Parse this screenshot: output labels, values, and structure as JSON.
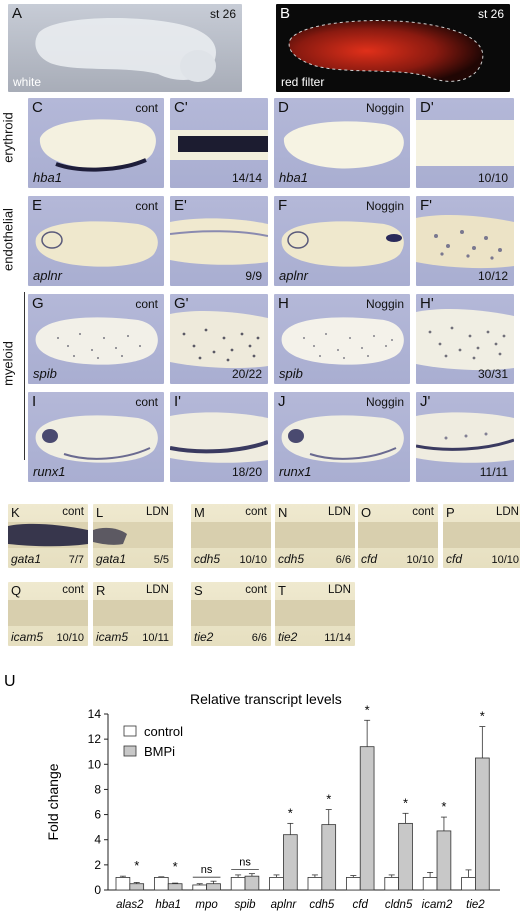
{
  "rows": {
    "erythroid": "erythroid",
    "endothelial": "endothelial",
    "myeloid": "myeloid"
  },
  "panels": {
    "A": {
      "label": "A",
      "tag": "st 26",
      "note": "white"
    },
    "B": {
      "label": "B",
      "tag": "st 26",
      "note": "red filter"
    },
    "C": {
      "label": "C",
      "tag": "cont",
      "gene": "hba1"
    },
    "Cp": {
      "label": "C'",
      "ratio": "14/14"
    },
    "D": {
      "label": "D",
      "tag": "Noggin",
      "gene": "hba1"
    },
    "Dp": {
      "label": "D'",
      "ratio": "10/10"
    },
    "E": {
      "label": "E",
      "tag": "cont",
      "gene": "aplnr"
    },
    "Ep": {
      "label": "E'",
      "ratio": "9/9"
    },
    "F": {
      "label": "F",
      "tag": "Noggin",
      "gene": "aplnr"
    },
    "Fp": {
      "label": "F'",
      "ratio": "10/12"
    },
    "G": {
      "label": "G",
      "tag": "cont",
      "gene": "spib"
    },
    "Gp": {
      "label": "G'",
      "ratio": "20/22"
    },
    "H": {
      "label": "H",
      "tag": "Noggin",
      "gene": "spib"
    },
    "Hp": {
      "label": "H'",
      "ratio": "30/31"
    },
    "I": {
      "label": "I",
      "tag": "cont",
      "gene": "runx1"
    },
    "Ip": {
      "label": "I'",
      "ratio": "18/20"
    },
    "J": {
      "label": "J",
      "tag": "Noggin",
      "gene": "runx1"
    },
    "Jp": {
      "label": "J'",
      "ratio": "11/11"
    }
  },
  "small_panels": [
    {
      "label": "K",
      "tag": "cont",
      "gene": "gata1",
      "ratio": "7/7"
    },
    {
      "label": "L",
      "tag": "LDN",
      "gene": "gata1",
      "ratio": "5/5"
    },
    {
      "label": "M",
      "tag": "cont",
      "gene": "cdh5",
      "ratio": "10/10"
    },
    {
      "label": "N",
      "tag": "LDN",
      "gene": "cdh5",
      "ratio": "6/6"
    },
    {
      "label": "O",
      "tag": "cont",
      "gene": "cfd",
      "ratio": "10/10"
    },
    {
      "label": "P",
      "tag": "LDN",
      "gene": "cfd",
      "ratio": "10/10"
    },
    {
      "label": "Q",
      "tag": "cont",
      "gene": "icam5",
      "ratio": "10/10"
    },
    {
      "label": "R",
      "tag": "LDN",
      "gene": "icam5",
      "ratio": "10/11"
    },
    {
      "label": "S",
      "tag": "cont",
      "gene": "tie2",
      "ratio": "6/6"
    },
    {
      "label": "T",
      "tag": "LDN",
      "gene": "tie2",
      "ratio": "11/14"
    }
  ],
  "chart_data": {
    "panel_label": "U",
    "type": "bar",
    "title": "Relative transcript levels",
    "ylabel": "Fold change",
    "xlabel": "",
    "ylim": [
      0,
      14
    ],
    "yticks": [
      0,
      2,
      4,
      6,
      8,
      10,
      12,
      14
    ],
    "categories": [
      "alas2",
      "hba1",
      "mpo",
      "spib",
      "aplnr",
      "cdh5",
      "cfd",
      "cldn5",
      "icam2",
      "tie2"
    ],
    "series": [
      {
        "name": "control",
        "values": [
          1.0,
          1.0,
          0.4,
          1.0,
          1.0,
          1.0,
          1.0,
          1.0,
          1.0,
          1.0
        ],
        "errors": [
          0.1,
          0.05,
          0.1,
          0.2,
          0.2,
          0.2,
          0.15,
          0.2,
          0.4,
          0.6
        ],
        "color": "#ffffff"
      },
      {
        "name": "BMPi",
        "values": [
          0.5,
          0.5,
          0.5,
          1.1,
          4.4,
          5.2,
          11.4,
          5.3,
          4.7,
          10.5
        ],
        "errors": [
          0.1,
          0.05,
          0.2,
          0.2,
          0.9,
          1.2,
          2.1,
          0.8,
          1.1,
          2.5
        ],
        "color": "#c8c8c8"
      }
    ],
    "annotations": [
      "*",
      "*",
      "ns",
      "ns",
      "*",
      "*",
      "*",
      "*",
      "*",
      "*"
    ],
    "legend_position": "top-left"
  }
}
